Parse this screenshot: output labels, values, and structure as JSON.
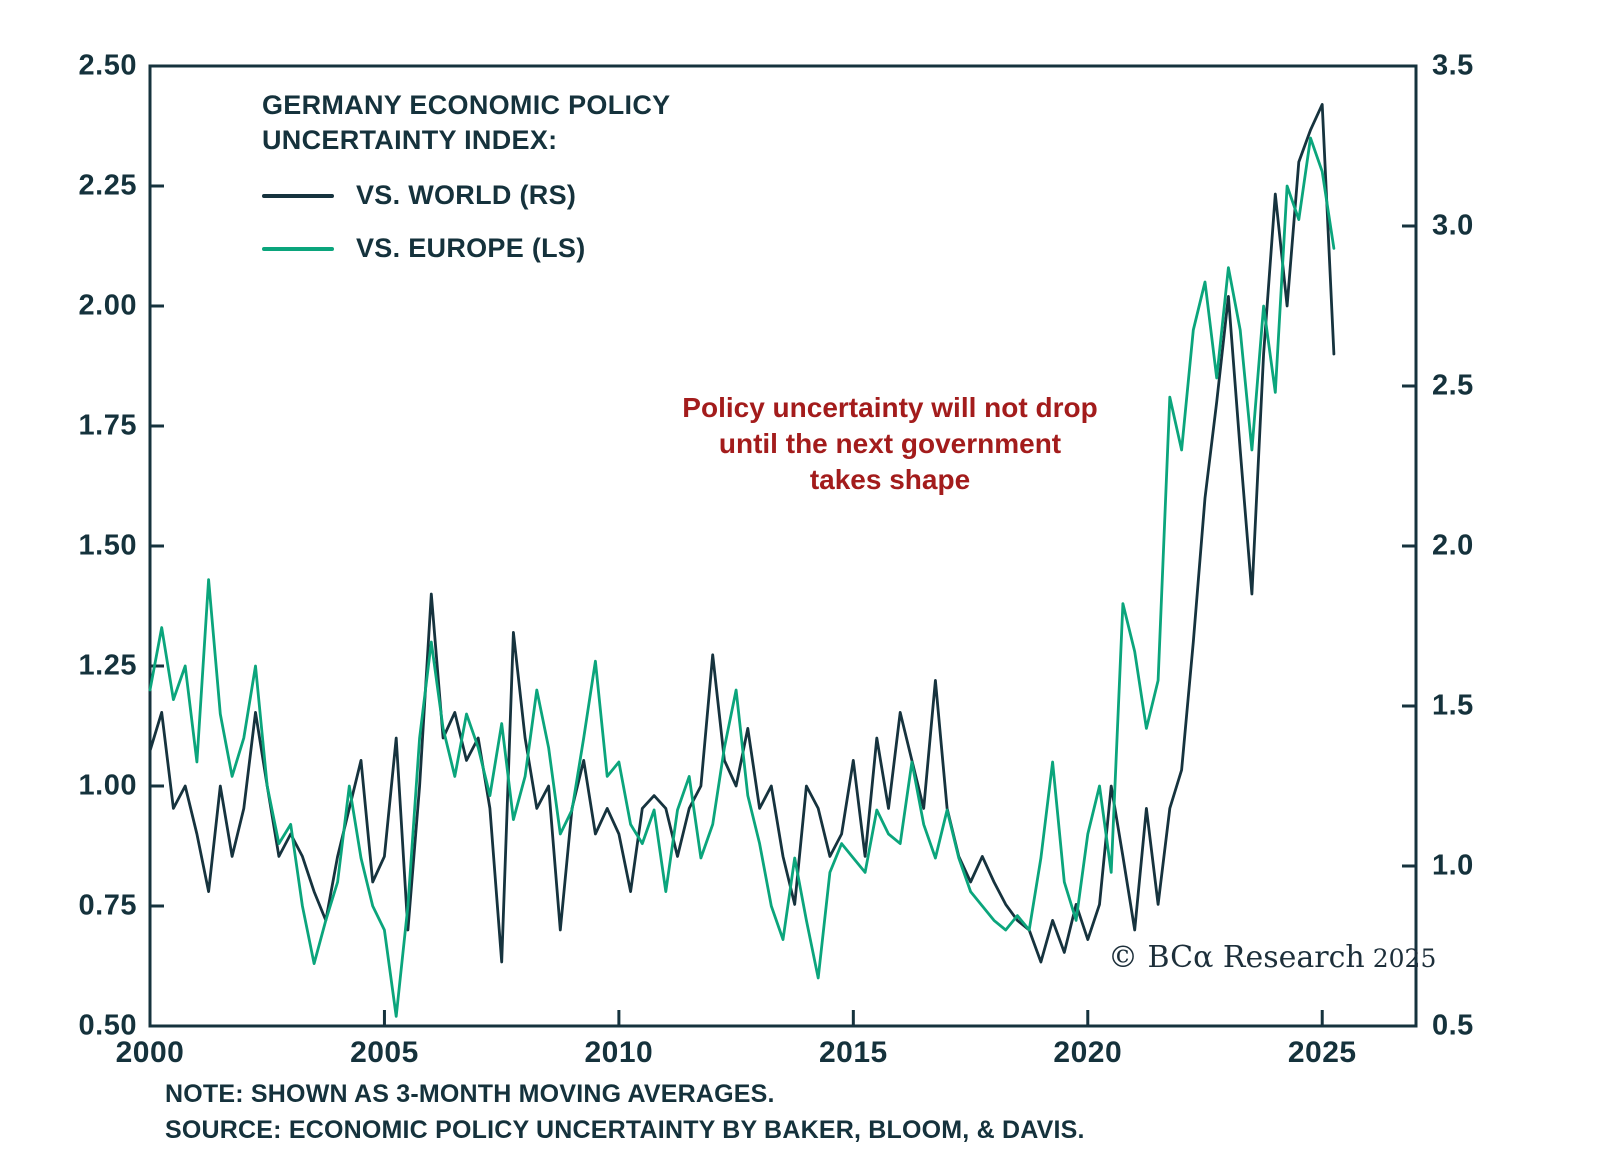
{
  "title": {
    "line1": "GERMANY ECONOMIC POLICY",
    "line2": "UNCERTAINTY INDEX:"
  },
  "legend": {
    "items": [
      {
        "label": "VS. WORLD (RS)",
        "color": "#16333e"
      },
      {
        "label": "VS. EUROPE (LS)",
        "color": "#0ba57c"
      }
    ]
  },
  "annotation": {
    "line1": "Policy uncertainty will not drop",
    "line2": "until the next government",
    "line3": "takes shape",
    "color": "#a31c1c"
  },
  "copyright": {
    "brand": "© BCα Research",
    "year": "2025"
  },
  "notes": {
    "note": "NOTE: SHOWN AS 3-MONTH MOVING AVERAGES.",
    "source": "SOURCE: ECONOMIC POLICY UNCERTAINTY BY BAKER, BLOOM, & DAVIS."
  },
  "colors": {
    "world": "#16333e",
    "europe": "#0ba57c",
    "frame": "#16333e",
    "axis_text": "#15323c"
  },
  "chart_data": {
    "type": "line",
    "title": "GERMANY ECONOMIC POLICY UNCERTAINTY INDEX",
    "note": "Shown as 3-month moving averages",
    "x_start": 2000.0,
    "x_step": 0.25,
    "x_axis": {
      "min": 2000,
      "max": 2027,
      "tick_labels": [
        "2000",
        "2005",
        "2010",
        "2015",
        "2020",
        "2025"
      ]
    },
    "left_axis": {
      "min": 0.5,
      "max": 2.5,
      "tick_labels": [
        "2.50",
        "2.25",
        "2.00",
        "1.75",
        "1.50",
        "1.25",
        "1.00",
        "0.75",
        "0.50"
      ]
    },
    "right_axis": {
      "min": 0.5,
      "max": 3.5,
      "tick_labels": [
        "3.5",
        "3.0",
        "2.5",
        "2.0",
        "1.5",
        "1.0",
        "0.5"
      ]
    },
    "legend_position": "top-left inside plot",
    "grid": false,
    "series": [
      {
        "name": "VS. WORLD (RS)",
        "axis": "right",
        "color": "#16333e",
        "values": [
          1.36,
          1.48,
          1.18,
          1.25,
          1.1,
          0.92,
          1.25,
          1.03,
          1.18,
          1.48,
          1.25,
          1.03,
          1.1,
          1.03,
          0.92,
          0.83,
          1.03,
          1.18,
          1.33,
          0.95,
          1.03,
          1.4,
          0.8,
          1.25,
          1.85,
          1.4,
          1.48,
          1.33,
          1.4,
          1.18,
          0.7,
          1.73,
          1.4,
          1.18,
          1.25,
          0.8,
          1.18,
          1.33,
          1.1,
          1.18,
          1.1,
          0.92,
          1.18,
          1.22,
          1.18,
          1.03,
          1.18,
          1.25,
          1.66,
          1.33,
          1.25,
          1.43,
          1.18,
          1.25,
          1.03,
          0.88,
          1.25,
          1.18,
          1.03,
          1.1,
          1.33,
          1.03,
          1.4,
          1.18,
          1.48,
          1.33,
          1.18,
          1.58,
          1.18,
          1.03,
          0.95,
          1.03,
          0.95,
          0.88,
          0.83,
          0.8,
          0.7,
          0.83,
          0.73,
          0.88,
          0.77,
          0.88,
          1.25,
          1.03,
          0.8,
          1.18,
          0.88,
          1.18,
          1.3,
          1.7,
          2.15,
          2.45,
          2.78,
          2.3,
          1.85,
          2.6,
          3.1,
          2.75,
          3.2,
          3.3,
          3.38,
          2.6
        ]
      },
      {
        "name": "VS. EUROPE (LS)",
        "axis": "left",
        "color": "#0ba57c",
        "values": [
          1.2,
          1.33,
          1.18,
          1.25,
          1.05,
          1.43,
          1.15,
          1.02,
          1.1,
          1.25,
          1.0,
          0.88,
          0.92,
          0.75,
          0.63,
          0.72,
          0.8,
          1.0,
          0.85,
          0.75,
          0.7,
          0.52,
          0.75,
          1.1,
          1.3,
          1.12,
          1.02,
          1.15,
          1.08,
          0.98,
          1.13,
          0.93,
          1.02,
          1.2,
          1.08,
          0.9,
          0.95,
          1.1,
          1.26,
          1.02,
          1.05,
          0.92,
          0.88,
          0.95,
          0.78,
          0.95,
          1.02,
          0.85,
          0.92,
          1.08,
          1.2,
          0.98,
          0.88,
          0.75,
          0.68,
          0.85,
          0.72,
          0.6,
          0.82,
          0.88,
          0.85,
          0.82,
          0.95,
          0.9,
          0.88,
          1.05,
          0.92,
          0.85,
          0.95,
          0.85,
          0.78,
          0.75,
          0.72,
          0.7,
          0.73,
          0.7,
          0.85,
          1.05,
          0.8,
          0.72,
          0.9,
          1.0,
          0.82,
          1.38,
          1.28,
          1.12,
          1.22,
          1.81,
          1.7,
          1.95,
          2.05,
          1.85,
          2.08,
          1.95,
          1.7,
          2.0,
          1.82,
          2.25,
          2.18,
          2.35,
          2.28,
          2.12
        ]
      }
    ]
  }
}
